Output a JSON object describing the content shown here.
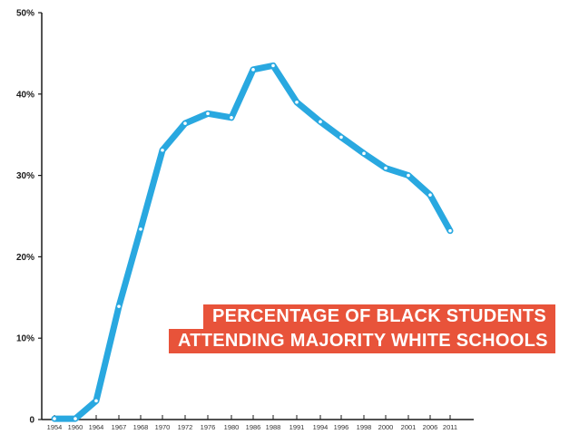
{
  "chart_data": {
    "type": "line",
    "title_lines": [
      "PERCENTAGE OF BLACK STUDENTS",
      "ATTENDING MAJORITY WHITE SCHOOLS"
    ],
    "x": [
      "1954",
      "1960",
      "1964",
      "1967",
      "1968",
      "1970",
      "1972",
      "1976",
      "1980",
      "1986",
      "1988",
      "1991",
      "1994",
      "1996",
      "1998",
      "2000",
      "2001",
      "2006",
      "2011"
    ],
    "values": [
      0.1,
      0.1,
      2.3,
      13.9,
      23.4,
      33.1,
      36.4,
      37.6,
      37.1,
      43.0,
      43.5,
      39.0,
      36.6,
      34.7,
      32.7,
      30.9,
      30.0,
      27.6,
      23.2
    ],
    "yticks": [
      "0",
      "10%",
      "20%",
      "30%",
      "40%",
      "50%"
    ],
    "ylim": [
      0,
      50
    ],
    "line_color": "#29a8e0",
    "title_bg_color": "#e8533a",
    "grid": false
  }
}
